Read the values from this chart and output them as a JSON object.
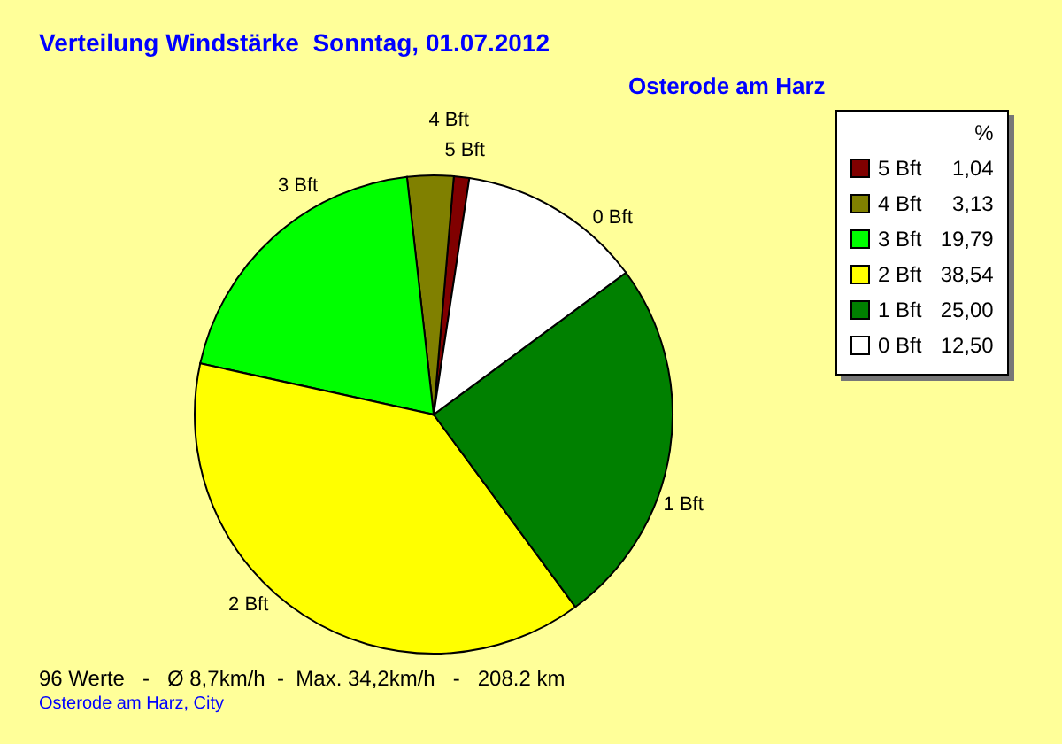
{
  "chart_data": {
    "type": "pie",
    "title": "Verteilung Windstärke  Sonntag, 01.07.2012",
    "subtitle": "Osterode am Harz",
    "legend_title": "%",
    "legend": "top right",
    "categories": [
      "5 Bft",
      "4 Bft",
      "3 Bft",
      "2 Bft",
      "1 Bft",
      "0 Bft"
    ],
    "values": [
      1.04,
      3.13,
      19.79,
      38.54,
      25.0,
      12.5
    ],
    "value_labels": [
      "1,04",
      "3,13",
      "19,79",
      "38,54",
      "25,00",
      "12,50"
    ],
    "colors": [
      "#800000",
      "#808000",
      "#00ff00",
      "#ffff00",
      "#008000",
      "#ffffff"
    ],
    "annotations": [
      "96 Werte   -   Ø 8,7km/h  -  Max. 34,2km/h   -   208.2 km",
      "Osterode am Harz, City"
    ]
  }
}
